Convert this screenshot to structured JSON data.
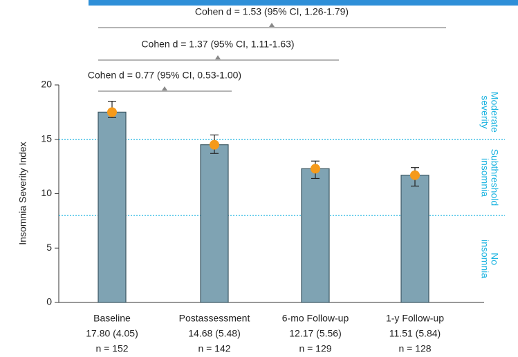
{
  "chart_data": {
    "type": "bar",
    "ylabel": "Insomnia Severity Index",
    "categories": [
      "Baseline",
      "Postassessment",
      "6-mo Follow-up",
      "1-y Follow-up"
    ],
    "category_stats": [
      "17.80 (4.05)",
      "14.68 (5.48)",
      "12.17 (5.56)",
      "11.51 (5.84)"
    ],
    "category_n": [
      "n = 152",
      "n = 142",
      "n = 129",
      "n = 128"
    ],
    "values": [
      17.5,
      14.5,
      12.3,
      11.7
    ],
    "ci_low": [
      17.0,
      13.7,
      11.4,
      10.7
    ],
    "ci_high": [
      18.5,
      15.4,
      13.0,
      12.4
    ],
    "color": "#7fa3b3",
    "point_color": "#f59a1b",
    "ylim": [
      0,
      20
    ],
    "yticks": [
      0,
      5,
      10,
      15,
      20
    ],
    "reference_lines": [
      15,
      8
    ],
    "reference_color": "#1ab3e0",
    "regions": [
      [
        "Moderate",
        "severity"
      ],
      [
        "Subthreshold",
        "insomnia"
      ],
      [
        "No",
        "insomnia"
      ]
    ],
    "annotations": [
      "Cohen d = 1.53 (95% CI, 1.26-1.79)",
      "Cohen d = 1.37 (95% CI, 1.11-1.63)",
      "Cohen d = 0.77 (95% CI, 0.53-1.00)"
    ]
  }
}
